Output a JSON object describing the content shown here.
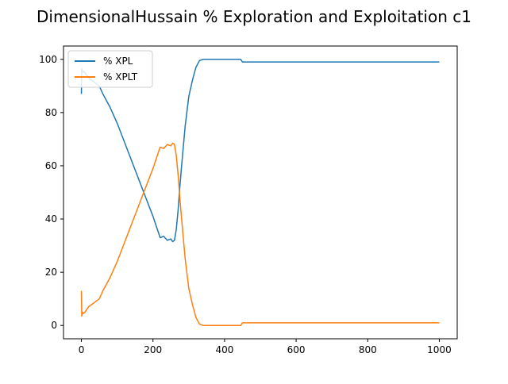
{
  "chart_data": {
    "type": "line",
    "title": "DimensionalHussain % Exploration and Exploitation c1",
    "xlabel": "",
    "ylabel": "",
    "xlim": [
      -50,
      1050
    ],
    "ylim": [
      -5,
      105
    ],
    "x_ticks": [
      0,
      200,
      400,
      600,
      800,
      1000
    ],
    "y_ticks": [
      0,
      20,
      40,
      60,
      80,
      100
    ],
    "grid": false,
    "legend_position": "top-left",
    "series": [
      {
        "name": "% XPL",
        "color": "#1f77b4",
        "x": [
          0,
          1,
          2,
          3,
          5,
          10,
          20,
          30,
          40,
          50,
          60,
          80,
          100,
          120,
          140,
          160,
          180,
          200,
          210,
          220,
          230,
          240,
          250,
          255,
          260,
          265,
          270,
          275,
          280,
          290,
          300,
          310,
          320,
          330,
          340,
          350,
          400,
          445,
          450,
          460,
          500,
          600,
          700,
          800,
          900,
          1000
        ],
        "y": [
          87,
          96.5,
          96,
          95,
          95.5,
          95,
          93,
          92,
          91,
          90,
          87,
          82,
          76,
          69,
          62,
          55,
          48,
          41,
          37,
          33,
          33.5,
          32,
          32.5,
          31.5,
          32,
          36,
          43,
          52,
          60,
          75,
          86,
          92,
          97,
          99.5,
          100,
          100,
          100,
          100,
          99,
          99,
          99,
          99,
          99,
          99,
          99,
          99
        ]
      },
      {
        "name": "% XPLT",
        "color": "#ff7f0e",
        "x": [
          0,
          1,
          2,
          3,
          5,
          10,
          20,
          30,
          40,
          50,
          60,
          80,
          100,
          120,
          140,
          160,
          180,
          200,
          210,
          220,
          230,
          240,
          250,
          255,
          260,
          265,
          270,
          275,
          280,
          290,
          300,
          310,
          320,
          330,
          340,
          350,
          400,
          445,
          450,
          460,
          500,
          600,
          700,
          800,
          900,
          1000
        ],
        "y": [
          13,
          3.5,
          4,
          5,
          4.5,
          5,
          7,
          8,
          9,
          10,
          13,
          18,
          24,
          31,
          38,
          45,
          52,
          59,
          63,
          67,
          66.5,
          68,
          67.5,
          68.5,
          68,
          64,
          57,
          48,
          40,
          25,
          14,
          8,
          3,
          0.5,
          0,
          0,
          0,
          0,
          1,
          1,
          1,
          1,
          1,
          1,
          1,
          1
        ]
      }
    ]
  }
}
